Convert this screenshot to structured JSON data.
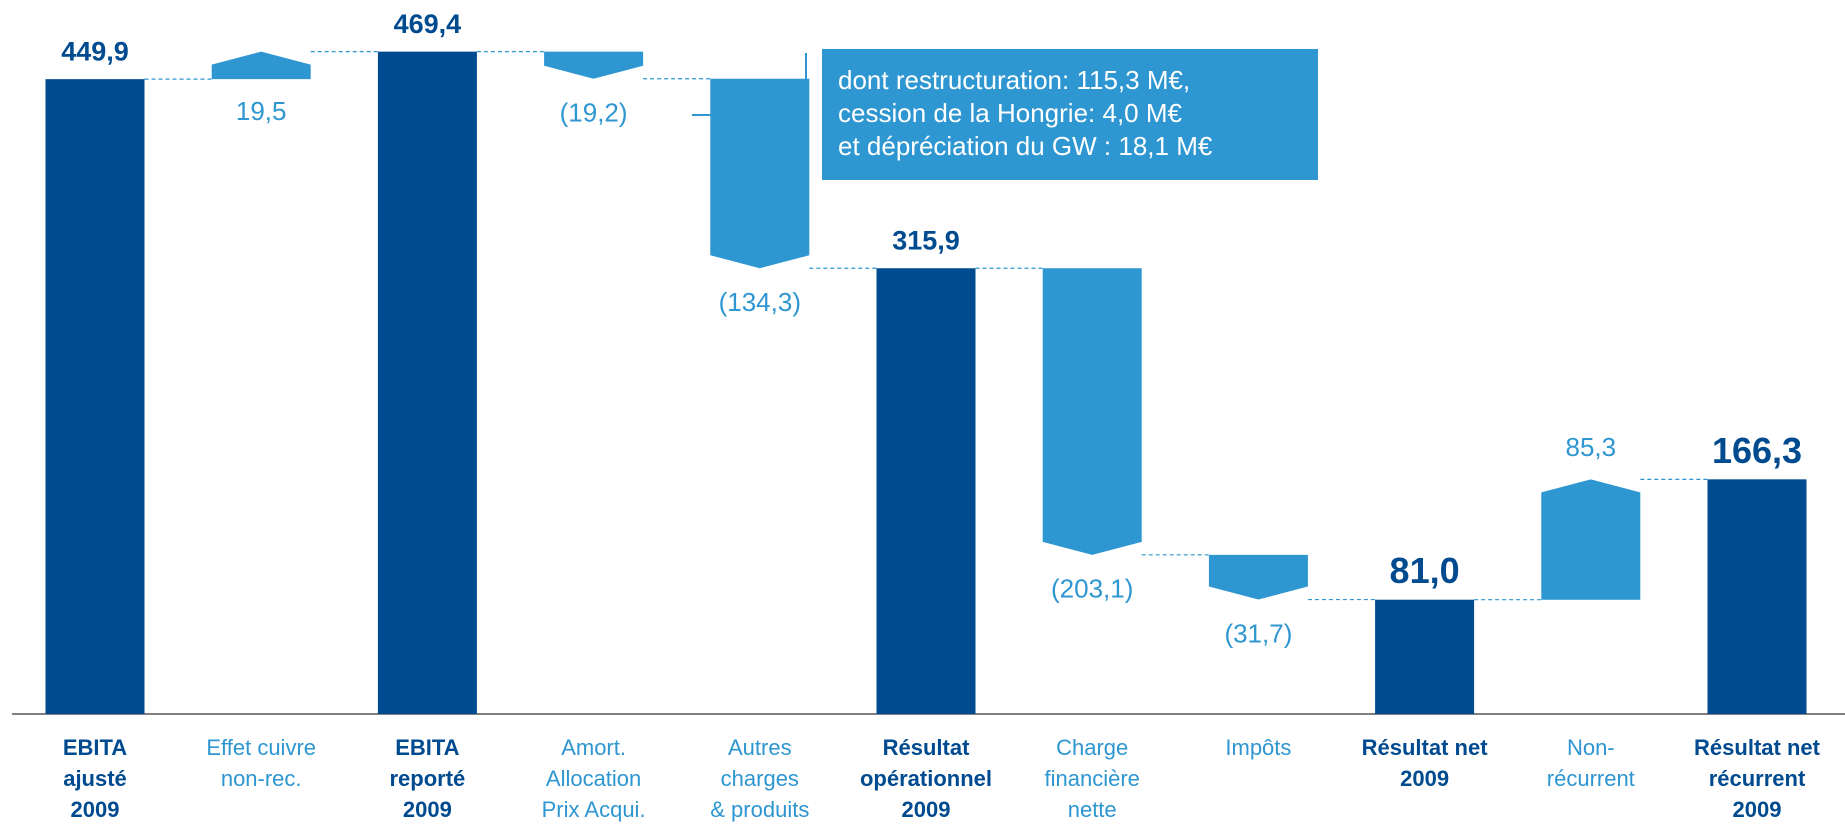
{
  "chart_data": {
    "type": "waterfall",
    "categories": [
      [
        "EBITA",
        "ajusté",
        "2009"
      ],
      [
        "Effet cuivre",
        "non-rec."
      ],
      [
        "EBITA",
        "reporté",
        "2009"
      ],
      [
        "Amort.",
        "Allocation",
        "Prix Acqui."
      ],
      [
        "Autres",
        "charges",
        "& produits"
      ],
      [
        "Résultat",
        "opérationnel",
        "2009"
      ],
      [
        "Charge",
        "financière",
        "nette"
      ],
      [
        "Impôts"
      ],
      [
        "Résultat net",
        "2009"
      ],
      [
        "Non-",
        "récurrent"
      ],
      [
        "Résultat net",
        "récurrent",
        "2009"
      ]
    ],
    "values": [
      449.9,
      19.5,
      469.4,
      -19.2,
      -134.3,
      315.9,
      -203.1,
      -31.7,
      81.0,
      85.3,
      166.3
    ],
    "value_labels": [
      "449,9",
      "19,5",
      "469,4",
      "(19,2)",
      "(134,3)",
      "315,9",
      "(203,1)",
      "(31,7)",
      "81,0",
      "85,3",
      "166,3"
    ],
    "colors": [
      "#004a8f",
      "#2e96d0",
      "#004a8f",
      "#2e96d0",
      "#2e96d0",
      "#004a8f",
      "#2e96d0",
      "#2e96d0",
      "#004a8f",
      "#2e96d0",
      "#004a8f"
    ],
    "total_color": "#004a8f",
    "ylim": [
      0,
      506
    ],
    "annotation": [
      "dont restructuration: 115,3 M€,",
      "cession de la Hongrie: 4,0 M€",
      "et dépréciation du GW : 18,1 M€"
    ]
  }
}
